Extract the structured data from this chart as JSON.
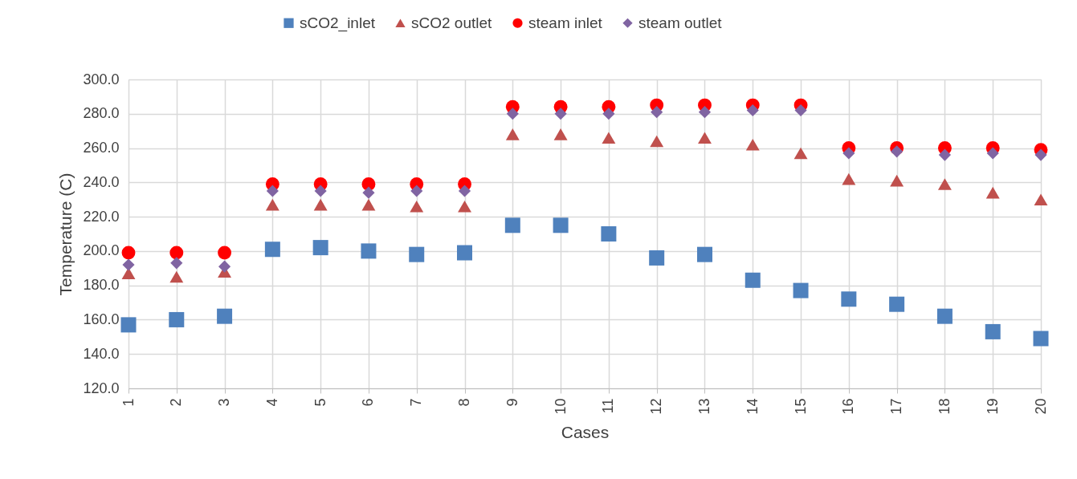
{
  "chart_data": {
    "type": "scatter",
    "xlabel": "Cases",
    "ylabel": "Temperature (C)",
    "categories": [
      "1",
      "2",
      "3",
      "4",
      "5",
      "6",
      "7",
      "8",
      "9",
      "10",
      "11",
      "12",
      "13",
      "14",
      "15",
      "16",
      "17",
      "18",
      "19",
      "20"
    ],
    "ylim": [
      120,
      300
    ],
    "yticks": [
      {
        "value": 120,
        "label": "120.0"
      },
      {
        "value": 140,
        "label": "140.0"
      },
      {
        "value": 160,
        "label": "160.0"
      },
      {
        "value": 180,
        "label": "180.0"
      },
      {
        "value": 200,
        "label": "200.0"
      },
      {
        "value": 220,
        "label": "220.0"
      },
      {
        "value": 240,
        "label": "240.0"
      },
      {
        "value": 260,
        "label": "260.0"
      },
      {
        "value": 280,
        "label": "280.0"
      },
      {
        "value": 300,
        "label": "300.0"
      }
    ],
    "grid": true,
    "legend": "top",
    "series": [
      {
        "name": "sCO2_inlet",
        "color": "#4f81bd",
        "marker": "square",
        "values": [
          157,
          160,
          162,
          201,
          202,
          200,
          198,
          199,
          215,
          215,
          210,
          196,
          198,
          183,
          177,
          172,
          169,
          162,
          153,
          149
        ]
      },
      {
        "name": "sCO2 outlet",
        "color": "#c0504d",
        "marker": "triangle",
        "values": [
          187,
          185,
          188,
          227,
          227,
          227,
          226,
          226,
          268,
          268,
          266,
          264,
          266,
          262,
          257,
          242,
          241,
          239,
          234,
          230
        ]
      },
      {
        "name": "steam inlet",
        "color": "#ff0000",
        "marker": "circle",
        "values": [
          199,
          199,
          199,
          239,
          239,
          239,
          239,
          239,
          284,
          284,
          284,
          285,
          285,
          285,
          285,
          260,
          260,
          260,
          260,
          259
        ]
      },
      {
        "name": "steam outlet",
        "color": "#8064a2",
        "marker": "diamond",
        "values": [
          192,
          193,
          191,
          235,
          235,
          234,
          235,
          235,
          280,
          280,
          280,
          281,
          281,
          282,
          282,
          257,
          258,
          256,
          257,
          256
        ]
      }
    ]
  }
}
